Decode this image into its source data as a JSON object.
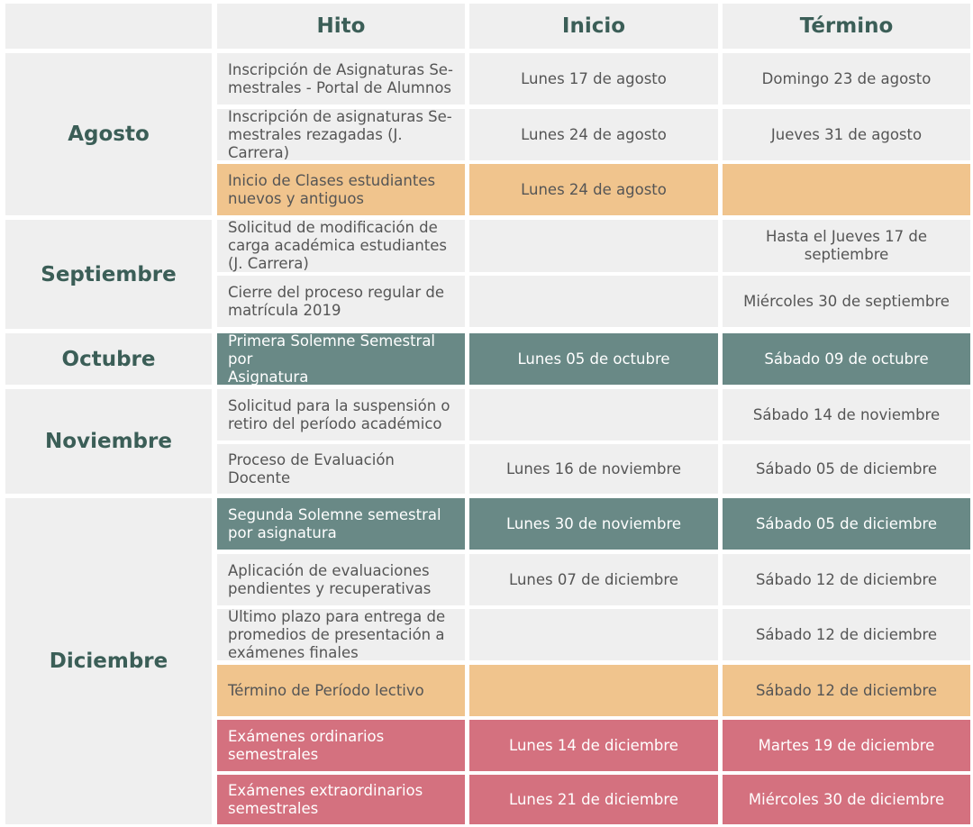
{
  "header": {
    "hito": "Hito",
    "inicio": "Inicio",
    "termino": "Término"
  },
  "months": {
    "agosto": "Agosto",
    "septiembre": "Septiembre",
    "octubre": "Octubre",
    "noviembre": "Noviembre",
    "diciembre": "Diciembre"
  },
  "rows": [
    {
      "hito": "Inscripción de Asignaturas Se-\nmestrales - Portal de Alumnos",
      "inicio": "Lunes 17 de agosto",
      "termino": "Domingo 23 de agosto",
      "color": "gray"
    },
    {
      "hito": "Inscripción de asignaturas Se-\nmestrales rezagadas (J. Carrera)",
      "inicio": "Lunes 24 de agosto",
      "termino": "Jueves 31 de agosto",
      "color": "gray"
    },
    {
      "hito": "Inicio de Clases estudiantes\nnuevos y antiguos",
      "inicio": "Lunes 24 de agosto",
      "termino": "",
      "color": "orange"
    },
    {
      "hito": "Solicitud de modificación de\ncarga académica estudiantes\n(J. Carrera)",
      "inicio": "",
      "termino": "Hasta el  Jueves 17 de\nseptiembre",
      "color": "gray"
    },
    {
      "hito": "Cierre del proceso regular de\nmatrícula 2019",
      "inicio": "",
      "termino": "Miércoles 30 de septiembre",
      "color": "gray"
    },
    {
      "hito": "Primera Solemne Semestral por\nAsignatura",
      "inicio": "Lunes 05 de octubre",
      "termino": "Sábado 09 de octubre",
      "color": "teal"
    },
    {
      "hito": "Solicitud para la suspensión o\nretiro del período académico",
      "inicio": "",
      "termino": "Sábado 14 de noviembre",
      "color": "gray"
    },
    {
      "hito": "Proceso de Evaluación Docente",
      "inicio": "Lunes 16 de noviembre",
      "termino": "Sábado 05 de diciembre",
      "color": "gray"
    },
    {
      "hito": "Segunda Solemne  semestral\npor asignatura",
      "inicio": "Lunes 30 de noviembre",
      "termino": "Sábado 05 de diciembre",
      "color": "teal"
    },
    {
      "hito": "Aplicación de evaluaciones\npendientes y recuperativas",
      "inicio": "Lunes 07 de diciembre",
      "termino": "Sábado 12 de diciembre",
      "color": "gray"
    },
    {
      "hito": "Último plazo para entrega de\npromedios de presentación a\nexámenes finales",
      "inicio": "",
      "termino": "Sábado 12 de diciembre",
      "color": "gray"
    },
    {
      "hito": "Término de Período lectivo",
      "inicio": "",
      "termino": "Sábado 12 de diciembre",
      "color": "orange"
    },
    {
      "hito": "Exámenes ordinarios semestrales",
      "inicio": "Lunes 14 de diciembre",
      "termino": "Martes 19 de diciembre",
      "color": "pink"
    },
    {
      "hito": "Exámenes extraordinarios\nsemestrales",
      "inicio": "Lunes 21 de diciembre",
      "termino": "Miércoles 30 de diciembre",
      "color": "pink"
    }
  ]
}
